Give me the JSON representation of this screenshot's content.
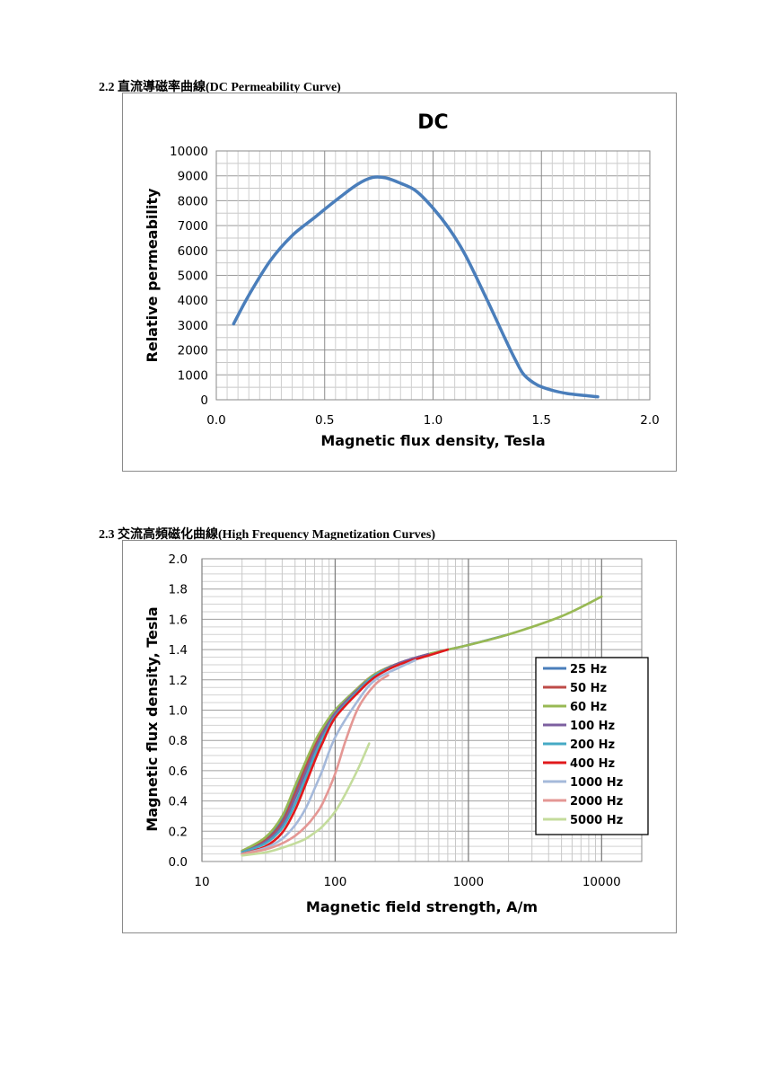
{
  "sections": [
    {
      "number": "2.2",
      "title": "直流導磁率曲線(DC Permeability Curve)"
    },
    {
      "number": "2.3",
      "title": "交流高頻磁化曲線(High Frequency Magnetization Curves)"
    }
  ],
  "chart_data": [
    {
      "type": "line",
      "title": "DC",
      "xlabel": "Magnetic flux density, Tesla",
      "ylabel": "Relative permeability",
      "xlim": [
        0,
        2.0
      ],
      "ylim": [
        0,
        10000
      ],
      "xticks": [
        "0.0",
        "0.5",
        "1.0",
        "1.5",
        "2.0"
      ],
      "yticks": [
        "0",
        "1000",
        "2000",
        "3000",
        "4000",
        "5000",
        "6000",
        "7000",
        "8000",
        "9000",
        "10000"
      ],
      "grid": true,
      "color": "#4a7ebb",
      "series": [
        {
          "x": [
            0.08,
            0.15,
            0.25,
            0.35,
            0.45,
            0.55,
            0.65,
            0.72,
            0.78,
            0.85,
            0.92,
            1.0,
            1.08,
            1.15,
            1.25,
            1.33,
            1.38,
            1.42,
            1.48,
            1.55,
            1.62,
            1.7,
            1.76
          ],
          "y": [
            3050,
            4200,
            5600,
            6600,
            7300,
            8000,
            8650,
            8930,
            8920,
            8700,
            8400,
            7700,
            6800,
            5800,
            4000,
            2500,
            1600,
            1000,
            600,
            380,
            250,
            170,
            120
          ]
        }
      ]
    },
    {
      "type": "line",
      "title": "",
      "xlabel": "Magnetic field strength, A/m",
      "ylabel": "Magnetic flux density, Tesla",
      "xscale": "log",
      "xlim": [
        10,
        20000
      ],
      "ylim": [
        0,
        2.0
      ],
      "xticks": [
        "10",
        "100",
        "1000",
        "10000"
      ],
      "yticks": [
        "0.0",
        "0.2",
        "0.4",
        "0.6",
        "0.8",
        "1.0",
        "1.2",
        "1.4",
        "1.6",
        "1.8",
        "2.0"
      ],
      "grid": true,
      "legend_position": "right",
      "series": [
        {
          "name": "25 Hz",
          "color": "#4a7ebb",
          "x": [
            20,
            30,
            40,
            50,
            60,
            70,
            80,
            100,
            150,
            200,
            300,
            500,
            1000,
            2000
          ],
          "y": [
            0.07,
            0.15,
            0.28,
            0.48,
            0.65,
            0.78,
            0.87,
            1.0,
            1.15,
            1.24,
            1.31,
            1.37,
            1.43,
            1.5
          ]
        },
        {
          "name": "50 Hz",
          "color": "#be4b48",
          "x": [
            20,
            30,
            40,
            50,
            60,
            70,
            80,
            100,
            150,
            200,
            300,
            500
          ],
          "y": [
            0.07,
            0.14,
            0.26,
            0.45,
            0.62,
            0.76,
            0.86,
            0.99,
            1.15,
            1.24,
            1.31,
            1.37
          ]
        },
        {
          "name": "60 Hz",
          "color": "#98b954",
          "x": [
            20,
            30,
            40,
            50,
            60,
            70,
            80,
            100,
            150,
            200,
            300,
            500,
            1000,
            2000,
            5000,
            10000
          ],
          "y": [
            0.07,
            0.16,
            0.3,
            0.5,
            0.66,
            0.79,
            0.88,
            1.0,
            1.15,
            1.24,
            1.31,
            1.37,
            1.43,
            1.5,
            1.62,
            1.75
          ]
        },
        {
          "name": "100 Hz",
          "color": "#7d60a0",
          "x": [
            20,
            30,
            40,
            50,
            60,
            70,
            80,
            100,
            150,
            200,
            300,
            500
          ],
          "y": [
            0.06,
            0.13,
            0.24,
            0.42,
            0.59,
            0.73,
            0.84,
            0.98,
            1.14,
            1.23,
            1.31,
            1.37
          ]
        },
        {
          "name": "200 Hz",
          "color": "#46aac5",
          "x": [
            20,
            30,
            40,
            50,
            60,
            70,
            80,
            100,
            150,
            200,
            300,
            500
          ],
          "y": [
            0.06,
            0.12,
            0.22,
            0.38,
            0.55,
            0.7,
            0.81,
            0.96,
            1.13,
            1.23,
            1.3,
            1.36
          ]
        },
        {
          "name": "400 Hz",
          "color": "#e1191c",
          "x": [
            20,
            30,
            40,
            50,
            60,
            70,
            80,
            100,
            150,
            200,
            300,
            500,
            700
          ],
          "y": [
            0.05,
            0.1,
            0.19,
            0.34,
            0.51,
            0.66,
            0.78,
            0.95,
            1.12,
            1.22,
            1.3,
            1.36,
            1.4
          ]
        },
        {
          "name": "1000 Hz",
          "color": "#a5b9da",
          "x": [
            20,
            30,
            40,
            50,
            60,
            70,
            80,
            100,
            150,
            200,
            300,
            400
          ],
          "y": [
            0.05,
            0.09,
            0.15,
            0.24,
            0.35,
            0.48,
            0.6,
            0.82,
            1.07,
            1.2,
            1.28,
            1.33
          ]
        },
        {
          "name": "2000 Hz",
          "color": "#e49794",
          "x": [
            20,
            30,
            40,
            50,
            60,
            70,
            80,
            100,
            120,
            150,
            200,
            250
          ],
          "y": [
            0.05,
            0.08,
            0.12,
            0.17,
            0.23,
            0.3,
            0.38,
            0.58,
            0.8,
            1.02,
            1.17,
            1.23
          ]
        },
        {
          "name": "5000 Hz",
          "color": "#c4dc9c",
          "x": [
            20,
            30,
            40,
            50,
            60,
            70,
            80,
            100,
            120,
            150,
            180
          ],
          "y": [
            0.04,
            0.06,
            0.09,
            0.12,
            0.15,
            0.19,
            0.23,
            0.33,
            0.45,
            0.62,
            0.78
          ]
        }
      ]
    }
  ]
}
